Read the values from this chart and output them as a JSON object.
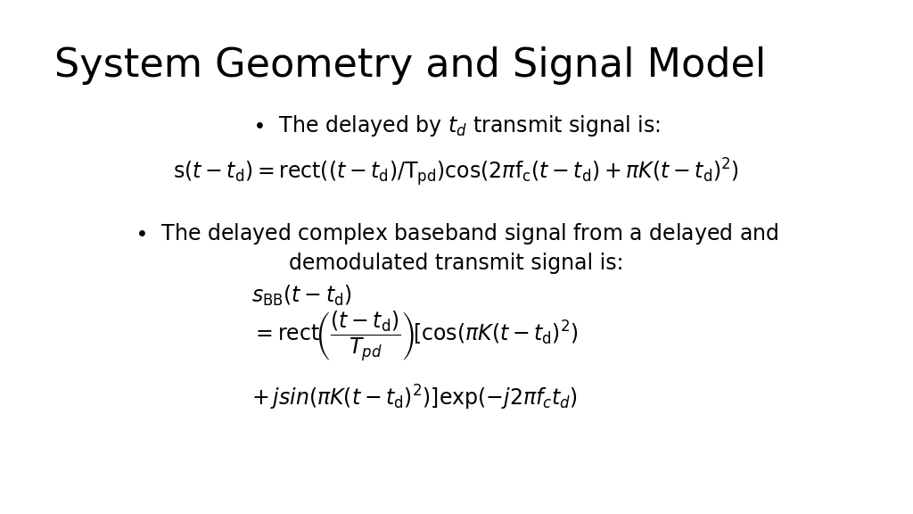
{
  "title": "System Geometry and Signal Model",
  "background_color": "#ffffff",
  "text_color": "#000000",
  "title_fontsize": 32,
  "body_fontsize": 17,
  "math_fontsize": 17
}
